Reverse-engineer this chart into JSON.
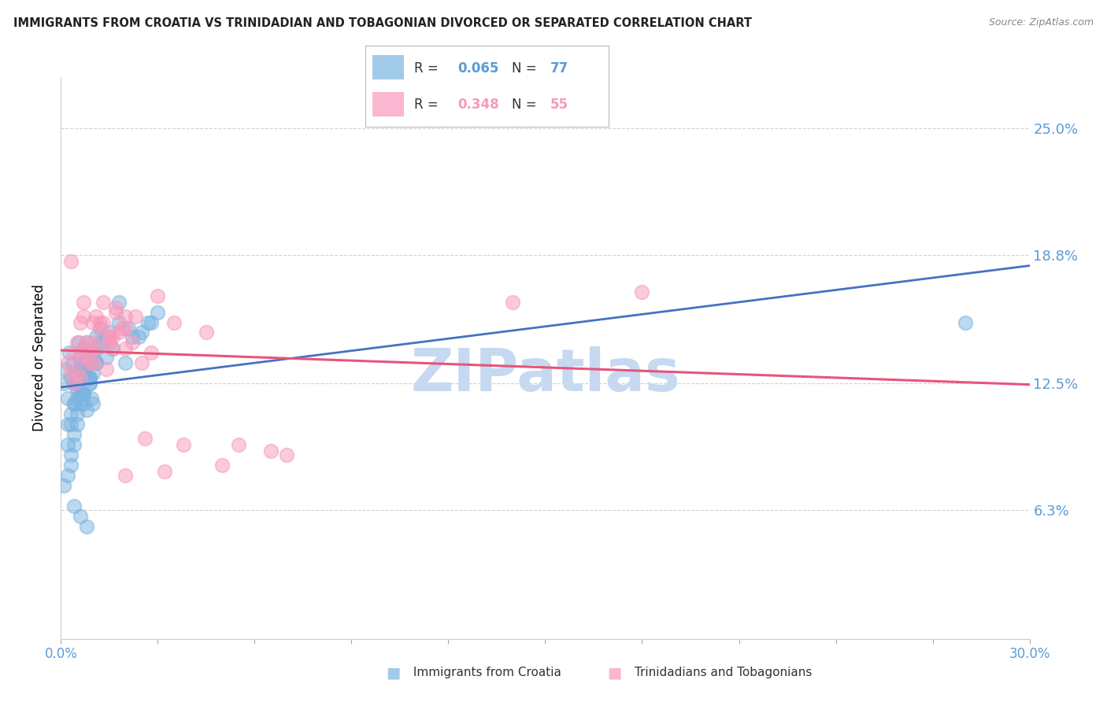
{
  "title": "IMMIGRANTS FROM CROATIA VS TRINIDADIAN AND TOBAGONIAN DIVORCED OR SEPARATED CORRELATION CHART",
  "source": "Source: ZipAtlas.com",
  "ylabel": "Divorced or Separated",
  "ytick_values": [
    6.3,
    12.5,
    18.8,
    25.0
  ],
  "xlim": [
    0.0,
    30.0
  ],
  "ylim": [
    0.0,
    27.5
  ],
  "watermark": "ZIPatlas",
  "watermark_color": "#c6d9f1",
  "scatter_blue_color": "#7ab4e0",
  "scatter_pink_color": "#f899bb",
  "trend_blue_color": "#4472c4",
  "trend_pink_color": "#e8547a",
  "axis_label_color": "#5b9bd5",
  "legend_r_blue": "0.065",
  "legend_n_blue": "77",
  "legend_r_pink": "0.348",
  "legend_n_pink": "55",
  "blue_points_x": [
    0.1,
    0.15,
    0.2,
    0.25,
    0.3,
    0.35,
    0.4,
    0.45,
    0.5,
    0.55,
    0.6,
    0.65,
    0.7,
    0.75,
    0.8,
    0.85,
    0.9,
    0.95,
    1.0,
    1.1,
    0.2,
    0.3,
    0.4,
    0.5,
    0.6,
    0.7,
    0.8,
    0.9,
    1.0,
    1.1,
    0.2,
    0.3,
    0.4,
    0.5,
    0.6,
    0.7,
    0.8,
    0.9,
    1.0,
    1.2,
    0.3,
    0.4,
    0.5,
    0.6,
    0.7,
    0.8,
    0.9,
    1.0,
    1.2,
    1.4,
    1.6,
    1.8,
    2.0,
    2.2,
    2.5,
    2.8,
    0.1,
    0.2,
    0.3,
    0.4,
    0.5,
    0.6,
    0.7,
    0.8,
    0.9,
    1.1,
    1.3,
    1.5,
    1.8,
    2.1,
    2.4,
    2.7,
    3.0,
    0.4,
    0.6,
    0.8,
    28.0
  ],
  "blue_points_y": [
    12.5,
    13.2,
    11.8,
    14.0,
    12.8,
    13.5,
    11.5,
    13.0,
    12.2,
    14.5,
    13.8,
    12.0,
    14.2,
    13.0,
    11.2,
    12.8,
    13.5,
    11.8,
    14.0,
    14.8,
    10.5,
    11.0,
    12.5,
    11.8,
    13.2,
    12.0,
    13.8,
    12.5,
    11.5,
    13.5,
    9.5,
    10.5,
    11.5,
    12.5,
    13.5,
    11.5,
    14.5,
    12.8,
    13.0,
    15.2,
    8.5,
    9.5,
    10.5,
    11.5,
    12.0,
    13.5,
    12.8,
    14.0,
    14.5,
    13.8,
    14.2,
    15.5,
    13.5,
    14.8,
    15.0,
    15.5,
    7.5,
    8.0,
    9.0,
    10.0,
    11.0,
    12.0,
    13.0,
    14.0,
    12.5,
    13.5,
    14.5,
    15.0,
    16.5,
    15.2,
    14.8,
    15.5,
    16.0,
    6.5,
    6.0,
    5.5,
    15.5
  ],
  "pink_points_x": [
    0.2,
    0.4,
    0.6,
    0.8,
    1.0,
    1.2,
    1.4,
    1.6,
    1.8,
    2.0,
    0.3,
    0.5,
    0.7,
    0.9,
    1.1,
    1.3,
    1.5,
    1.7,
    1.9,
    2.2,
    0.4,
    0.6,
    0.8,
    1.0,
    1.3,
    1.6,
    2.0,
    2.5,
    3.0,
    0.5,
    0.8,
    1.2,
    1.7,
    2.3,
    0.6,
    1.0,
    1.5,
    2.0,
    2.8,
    3.5,
    4.5,
    5.0,
    5.5,
    6.5,
    7.0,
    0.3,
    0.7,
    1.1,
    1.5,
    2.0,
    2.6,
    3.2,
    3.8,
    18.0,
    14.0
  ],
  "pink_points_y": [
    13.5,
    14.0,
    15.5,
    13.8,
    14.5,
    15.2,
    13.2,
    14.8,
    15.0,
    14.2,
    13.0,
    14.5,
    15.8,
    13.5,
    14.2,
    15.5,
    14.8,
    16.0,
    15.2,
    14.5,
    12.5,
    13.8,
    14.5,
    15.5,
    16.5,
    14.2,
    15.8,
    13.5,
    16.8,
    13.0,
    14.2,
    15.5,
    16.2,
    15.8,
    12.8,
    13.5,
    14.8,
    15.2,
    14.0,
    15.5,
    15.0,
    8.5,
    9.5,
    9.2,
    9.0,
    18.5,
    16.5,
    15.8,
    14.5,
    8.0,
    9.8,
    8.2,
    9.5,
    17.0,
    16.5
  ]
}
